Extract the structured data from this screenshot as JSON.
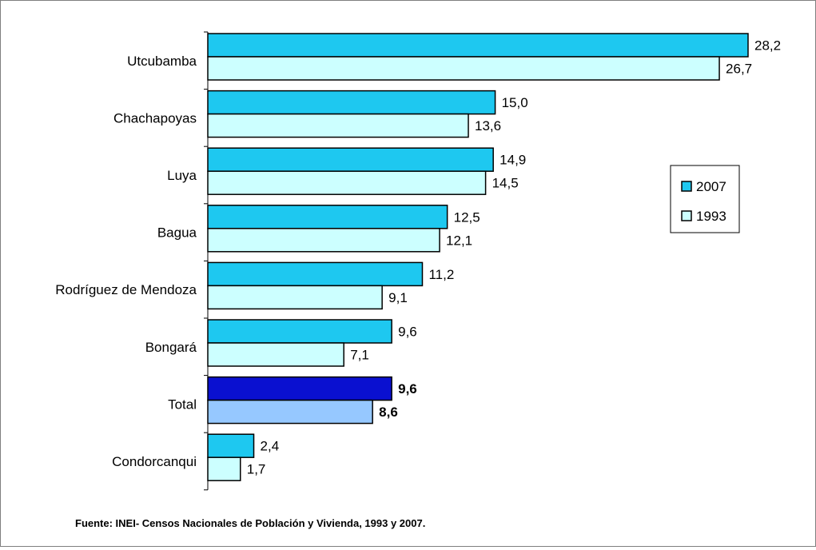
{
  "chart_data": {
    "type": "bar",
    "orientation": "horizontal",
    "categories": [
      "Utcubamba",
      "Chachapoyas",
      "Luya",
      "Bagua",
      "Rodríguez de Mendoza",
      "Bongará",
      "Total",
      "Condorcanqui"
    ],
    "series": [
      {
        "name": "2007",
        "values": [
          28.2,
          15.0,
          14.9,
          12.5,
          11.2,
          9.6,
          9.6,
          2.4
        ],
        "labels": [
          "28,2",
          "15,0",
          "14,9",
          "12,5",
          "11,2",
          "9,6",
          "9,6",
          "2,4"
        ],
        "color": "#1ec8f0",
        "highlight_color": "#0a10d0"
      },
      {
        "name": "1993",
        "values": [
          26.7,
          13.6,
          14.5,
          12.1,
          9.1,
          7.1,
          8.6,
          1.7
        ],
        "labels": [
          "26,7",
          "13,6",
          "14,5",
          "12,1",
          "9,1",
          "7,1",
          "8,6",
          "1,7"
        ],
        "color": "#ccffff",
        "highlight_color": "#96c8ff"
      }
    ],
    "highlight_category": "Total",
    "xlim": [
      0,
      30
    ],
    "grid": false,
    "legend": {
      "position": "right",
      "entries": [
        "2007",
        "1993"
      ]
    }
  },
  "source_note": "Fuente: INEI- Censos Nacionales de Población y Vivienda, 1993 y 2007."
}
